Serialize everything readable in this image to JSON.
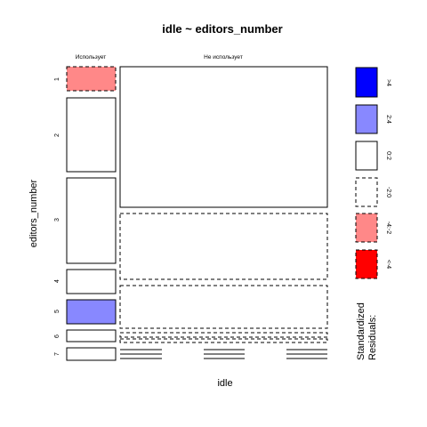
{
  "chart_data": {
    "type": "mosaic",
    "title": "idle ~ editors_number",
    "xlabel": "idle",
    "ylabel": "editors_number",
    "columns": [
      "Использует",
      "Не использует"
    ],
    "rows": [
      "1",
      "2",
      "3",
      "4",
      "5",
      "6",
      "7"
    ],
    "cells": [
      {
        "row": "1",
        "col": "Использует",
        "residual": "-4:-2"
      },
      {
        "row": "2",
        "col": "Использует",
        "residual": "0:2"
      },
      {
        "row": "3",
        "col": "Использует",
        "residual": "0:2"
      },
      {
        "row": "4",
        "col": "Использует",
        "residual": "0:2"
      },
      {
        "row": "5",
        "col": "Использует",
        "residual": "2:4"
      },
      {
        "row": "6",
        "col": "Использует",
        "residual": "0:2"
      },
      {
        "row": "7",
        "col": "Использует",
        "residual": "0:2"
      },
      {
        "row": "1-2",
        "col": "Не использует",
        "residual": "0:2"
      },
      {
        "row": "3",
        "col": "Не использует",
        "residual": "-2:0"
      },
      {
        "row": "4",
        "col": "Не использует",
        "residual": "-2:0"
      },
      {
        "row": "5",
        "col": "Не использует",
        "residual": "-2:0"
      },
      {
        "row": "6",
        "col": "Не использует",
        "residual": "-2:0"
      },
      {
        "row": "7",
        "col": "Не использует",
        "residual": "empty"
      }
    ],
    "legend": {
      "title_line1": "Standardized",
      "title_line2": "Residuals:",
      "position": "right",
      "entries": [
        {
          "label": ">4",
          "fill": "#0000ff",
          "dashed": false
        },
        {
          "label": "2:4",
          "fill": "#8888ff",
          "dashed": false
        },
        {
          "label": "0:2",
          "fill": "#ffffff",
          "dashed": false
        },
        {
          "label": "-2:0",
          "fill": "#ffffff",
          "dashed": true
        },
        {
          "label": "-4:-2",
          "fill": "#ff8888",
          "dashed": true
        },
        {
          "label": "<-4",
          "fill": "#ff0000",
          "dashed": true
        }
      ]
    }
  }
}
